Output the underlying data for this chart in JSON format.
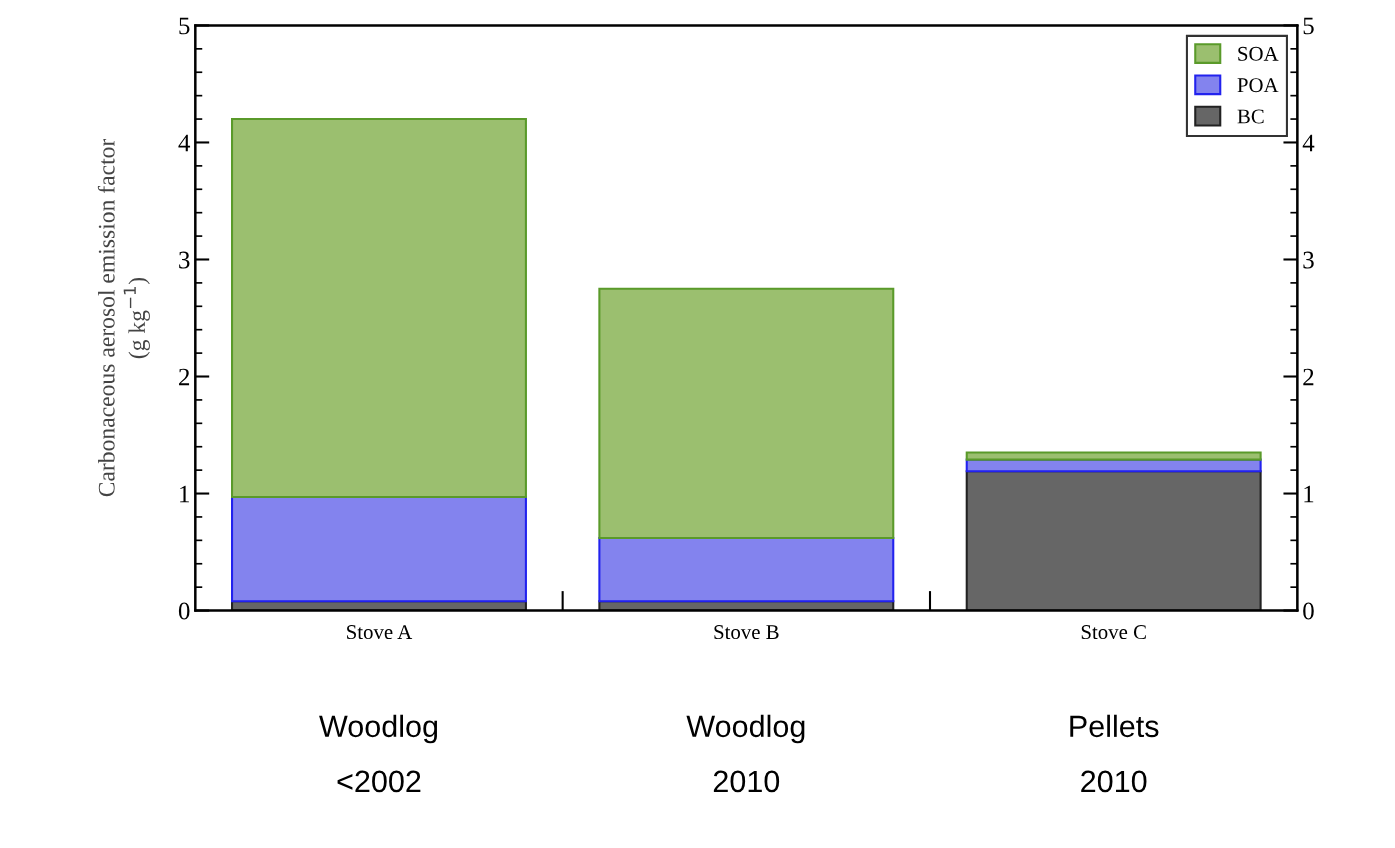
{
  "chart_data": {
    "type": "bar",
    "stacked": true,
    "ylabel": "Carbonaceous aerosol emission factor\n(g kg$^{−1}$)",
    "categories": [
      "Stove A",
      "Stove B",
      "Stove C"
    ],
    "series": [
      {
        "name": "BC",
        "color": "#666666",
        "values": [
          0.08,
          0.08,
          1.19
        ]
      },
      {
        "name": "POA",
        "color": "#8383ee",
        "values": [
          0.89,
          0.54,
          0.1
        ]
      },
      {
        "name": "SOA",
        "color": "#9bbf6f",
        "values": [
          3.23,
          2.13,
          0.06
        ]
      }
    ],
    "ylim": [
      0,
      5
    ],
    "yticks": [
      0,
      1,
      2,
      3,
      4,
      5
    ],
    "y2lim": [
      0,
      5
    ],
    "y2ticks": [
      0,
      1,
      2,
      3,
      4,
      5
    ],
    "grid": false,
    "legend": "top right",
    "annotations": [
      "Woodlog\n<2002",
      "Woodlog\n2010",
      "Pellets\n2010"
    ]
  }
}
